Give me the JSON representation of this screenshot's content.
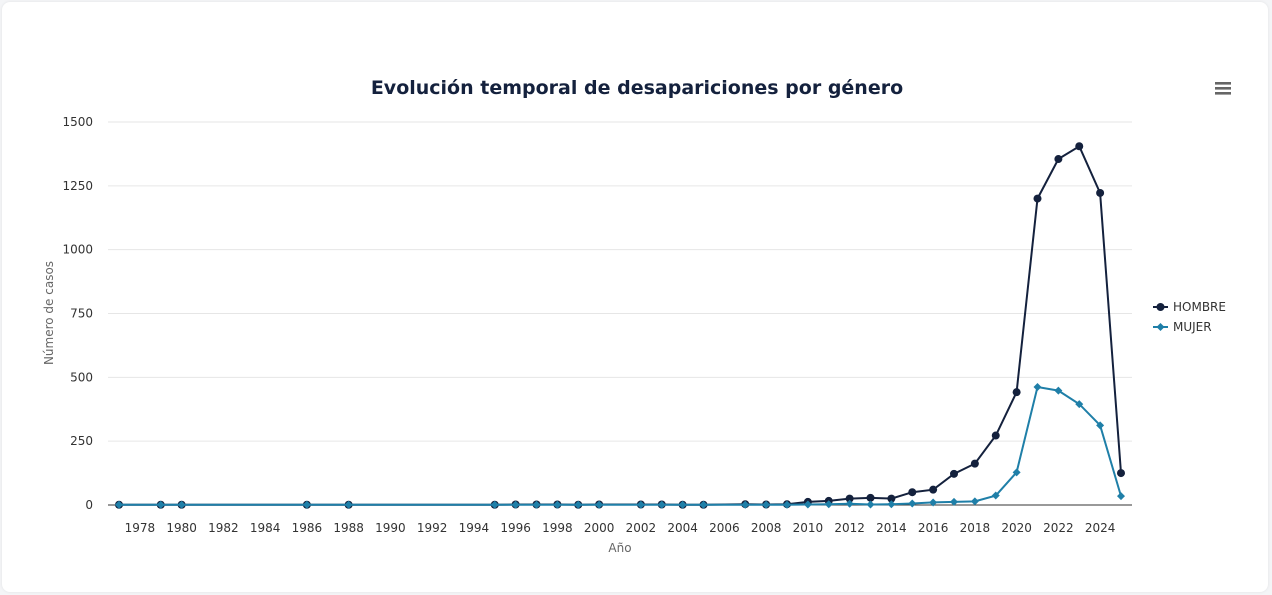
{
  "chart_data": {
    "type": "line",
    "title": "Evolución temporal de desapariciones por género",
    "xlabel": "Año",
    "ylabel": "Número de casos",
    "xlim": [
      1977,
      2025
    ],
    "ylim": [
      0,
      1500
    ],
    "x_ticks": [
      1978,
      1980,
      1982,
      1984,
      1986,
      1988,
      1990,
      1992,
      1994,
      1996,
      1998,
      2000,
      2002,
      2004,
      2006,
      2008,
      2010,
      2012,
      2014,
      2016,
      2018,
      2020,
      2022,
      2024
    ],
    "y_ticks": [
      0,
      250,
      500,
      750,
      1000,
      1250,
      1500
    ],
    "grid": true,
    "legend_position": "right",
    "series": [
      {
        "name": "HOMBRE",
        "color": "#14213d",
        "marker": "circle",
        "x": [
          1977,
          1979,
          1980,
          1986,
          1988,
          1995,
          1996,
          1997,
          1998,
          1999,
          2000,
          2002,
          2003,
          2004,
          2005,
          2007,
          2008,
          2009,
          2010,
          2011,
          2012,
          2013,
          2014,
          2015,
          2016,
          2017,
          2018,
          2019,
          2020,
          2021,
          2022,
          2023,
          2024,
          2025
        ],
        "values": [
          1,
          1,
          1,
          1,
          1,
          1,
          2,
          2,
          2,
          1,
          2,
          2,
          2,
          1,
          1,
          3,
          2,
          3,
          12,
          16,
          25,
          28,
          25,
          50,
          60,
          122,
          162,
          272,
          442,
          1200,
          1355,
          1405,
          1222,
          125
        ]
      },
      {
        "name": "MUJER",
        "color": "#1f7fa8",
        "marker": "diamond",
        "x": [
          1977,
          1979,
          1980,
          1986,
          1988,
          1995,
          1996,
          1997,
          1998,
          1999,
          2000,
          2002,
          2003,
          2004,
          2005,
          2007,
          2008,
          2009,
          2010,
          2011,
          2012,
          2013,
          2014,
          2015,
          2016,
          2017,
          2018,
          2019,
          2020,
          2021,
          2022,
          2023,
          2024,
          2025
        ],
        "values": [
          1,
          1,
          1,
          1,
          1,
          1,
          1,
          1,
          1,
          1,
          1,
          1,
          1,
          1,
          1,
          1,
          1,
          1,
          2,
          3,
          5,
          2,
          3,
          6,
          10,
          12,
          14,
          37,
          128,
          462,
          448,
          395,
          312,
          35
        ]
      }
    ]
  }
}
